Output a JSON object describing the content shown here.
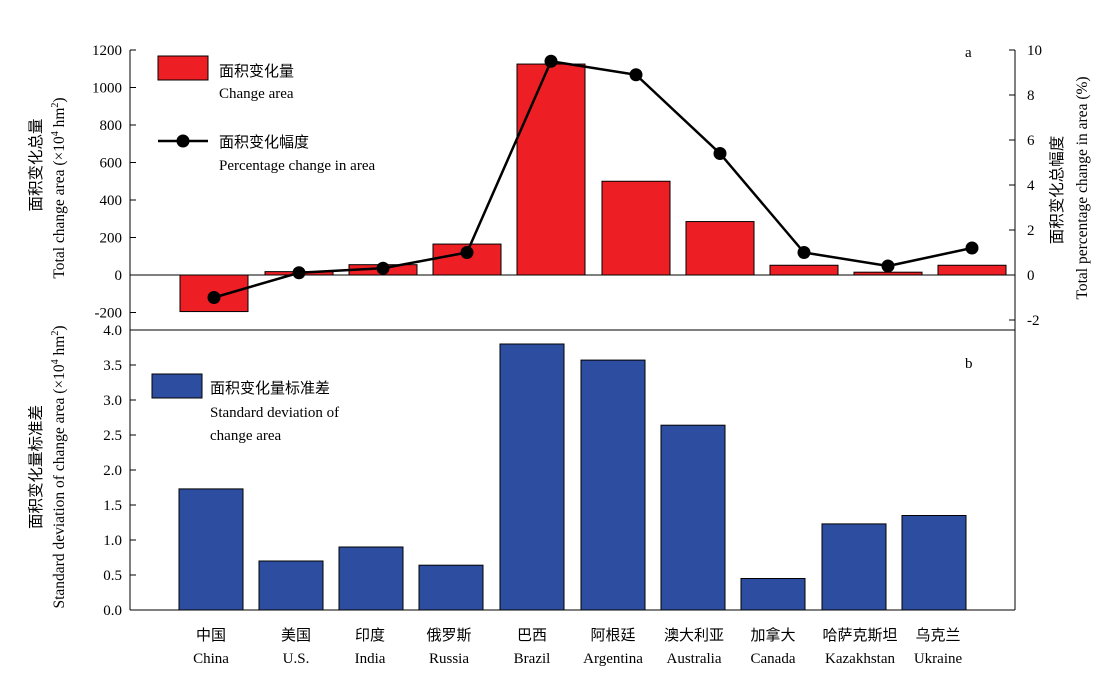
{
  "colors": {
    "change_bar": "#ee1f24",
    "std_bar": "#2d4ea0",
    "line": "#000000",
    "axis": "#000000"
  },
  "chart_data": [
    {
      "panel": "a",
      "type": "bar+line",
      "categories": [
        "China",
        "U.S.",
        "India",
        "Russia",
        "Brazil",
        "Argentina",
        "Australia",
        "Canada",
        "Kazakhstan",
        "Ukraine"
      ],
      "categories_cn": [
        "中国",
        "美国",
        "印度",
        "俄罗斯",
        "巴西",
        "阿根廷",
        "澳大利亚",
        "加拿大",
        "哈萨克斯坦",
        "乌克兰"
      ],
      "series": [
        {
          "name": "面积变化量",
          "name_en": "Change area",
          "type": "bar",
          "axis": "left",
          "values": [
            -195,
            18,
            55,
            165,
            1125,
            500,
            285,
            52,
            15,
            52
          ]
        },
        {
          "name": "面积变化幅度",
          "name_en": "Percentage change in area",
          "type": "line",
          "axis": "right",
          "values": [
            -1.0,
            0.1,
            0.3,
            1.0,
            9.5,
            8.9,
            5.4,
            1.0,
            0.4,
            1.2
          ]
        }
      ],
      "ylabel_left_cn": "面积变化总量",
      "ylabel_left_en_prefix": "Total change area (×10",
      "ylabel_left_en_sup": "4",
      "ylabel_left_en_mid": " hm",
      "ylabel_left_en_sup2": "2",
      "ylabel_left_en_suffix": ")",
      "ylabel_right_cn": "面积变化总幅度",
      "ylabel_right_en": "Total percentage change in area (%)",
      "ylim_left": [
        -250,
        1200
      ],
      "yticks_left": [
        "1200",
        "1000",
        "800",
        "600",
        "400",
        "200",
        "0",
        "-200"
      ],
      "ylim_right": [
        -2.2,
        10
      ],
      "yticks_right": [
        "10",
        "8",
        "6",
        "4",
        "2",
        "0",
        "-2"
      ],
      "panel_letter": "a"
    },
    {
      "panel": "b",
      "type": "bar",
      "categories": [
        "China",
        "U.S.",
        "India",
        "Russia",
        "Brazil",
        "Argentina",
        "Australia",
        "Canada",
        "Kazakhstan",
        "Ukraine"
      ],
      "series": [
        {
          "name": "面积变化量标准差",
          "name_en_line1": "Standard deviation of",
          "name_en_line2": "change area",
          "values": [
            1.73,
            0.7,
            0.9,
            0.64,
            3.8,
            3.57,
            2.64,
            0.45,
            1.23,
            1.35
          ]
        }
      ],
      "ylabel_cn": "面积变化量标准差",
      "ylabel_en_prefix": "Standard deviation of change area (×10",
      "ylabel_en_sup": "4",
      "ylabel_en_mid": " hm",
      "ylabel_en_sup2": "2",
      "ylabel_en_suffix": ")",
      "ylim": [
        0,
        4.0
      ],
      "yticks": [
        "4.0",
        "3.5",
        "3.0",
        "2.5",
        "2.0",
        "1.5",
        "1.0",
        "0.5",
        "0.0"
      ],
      "panel_letter": "b"
    }
  ]
}
